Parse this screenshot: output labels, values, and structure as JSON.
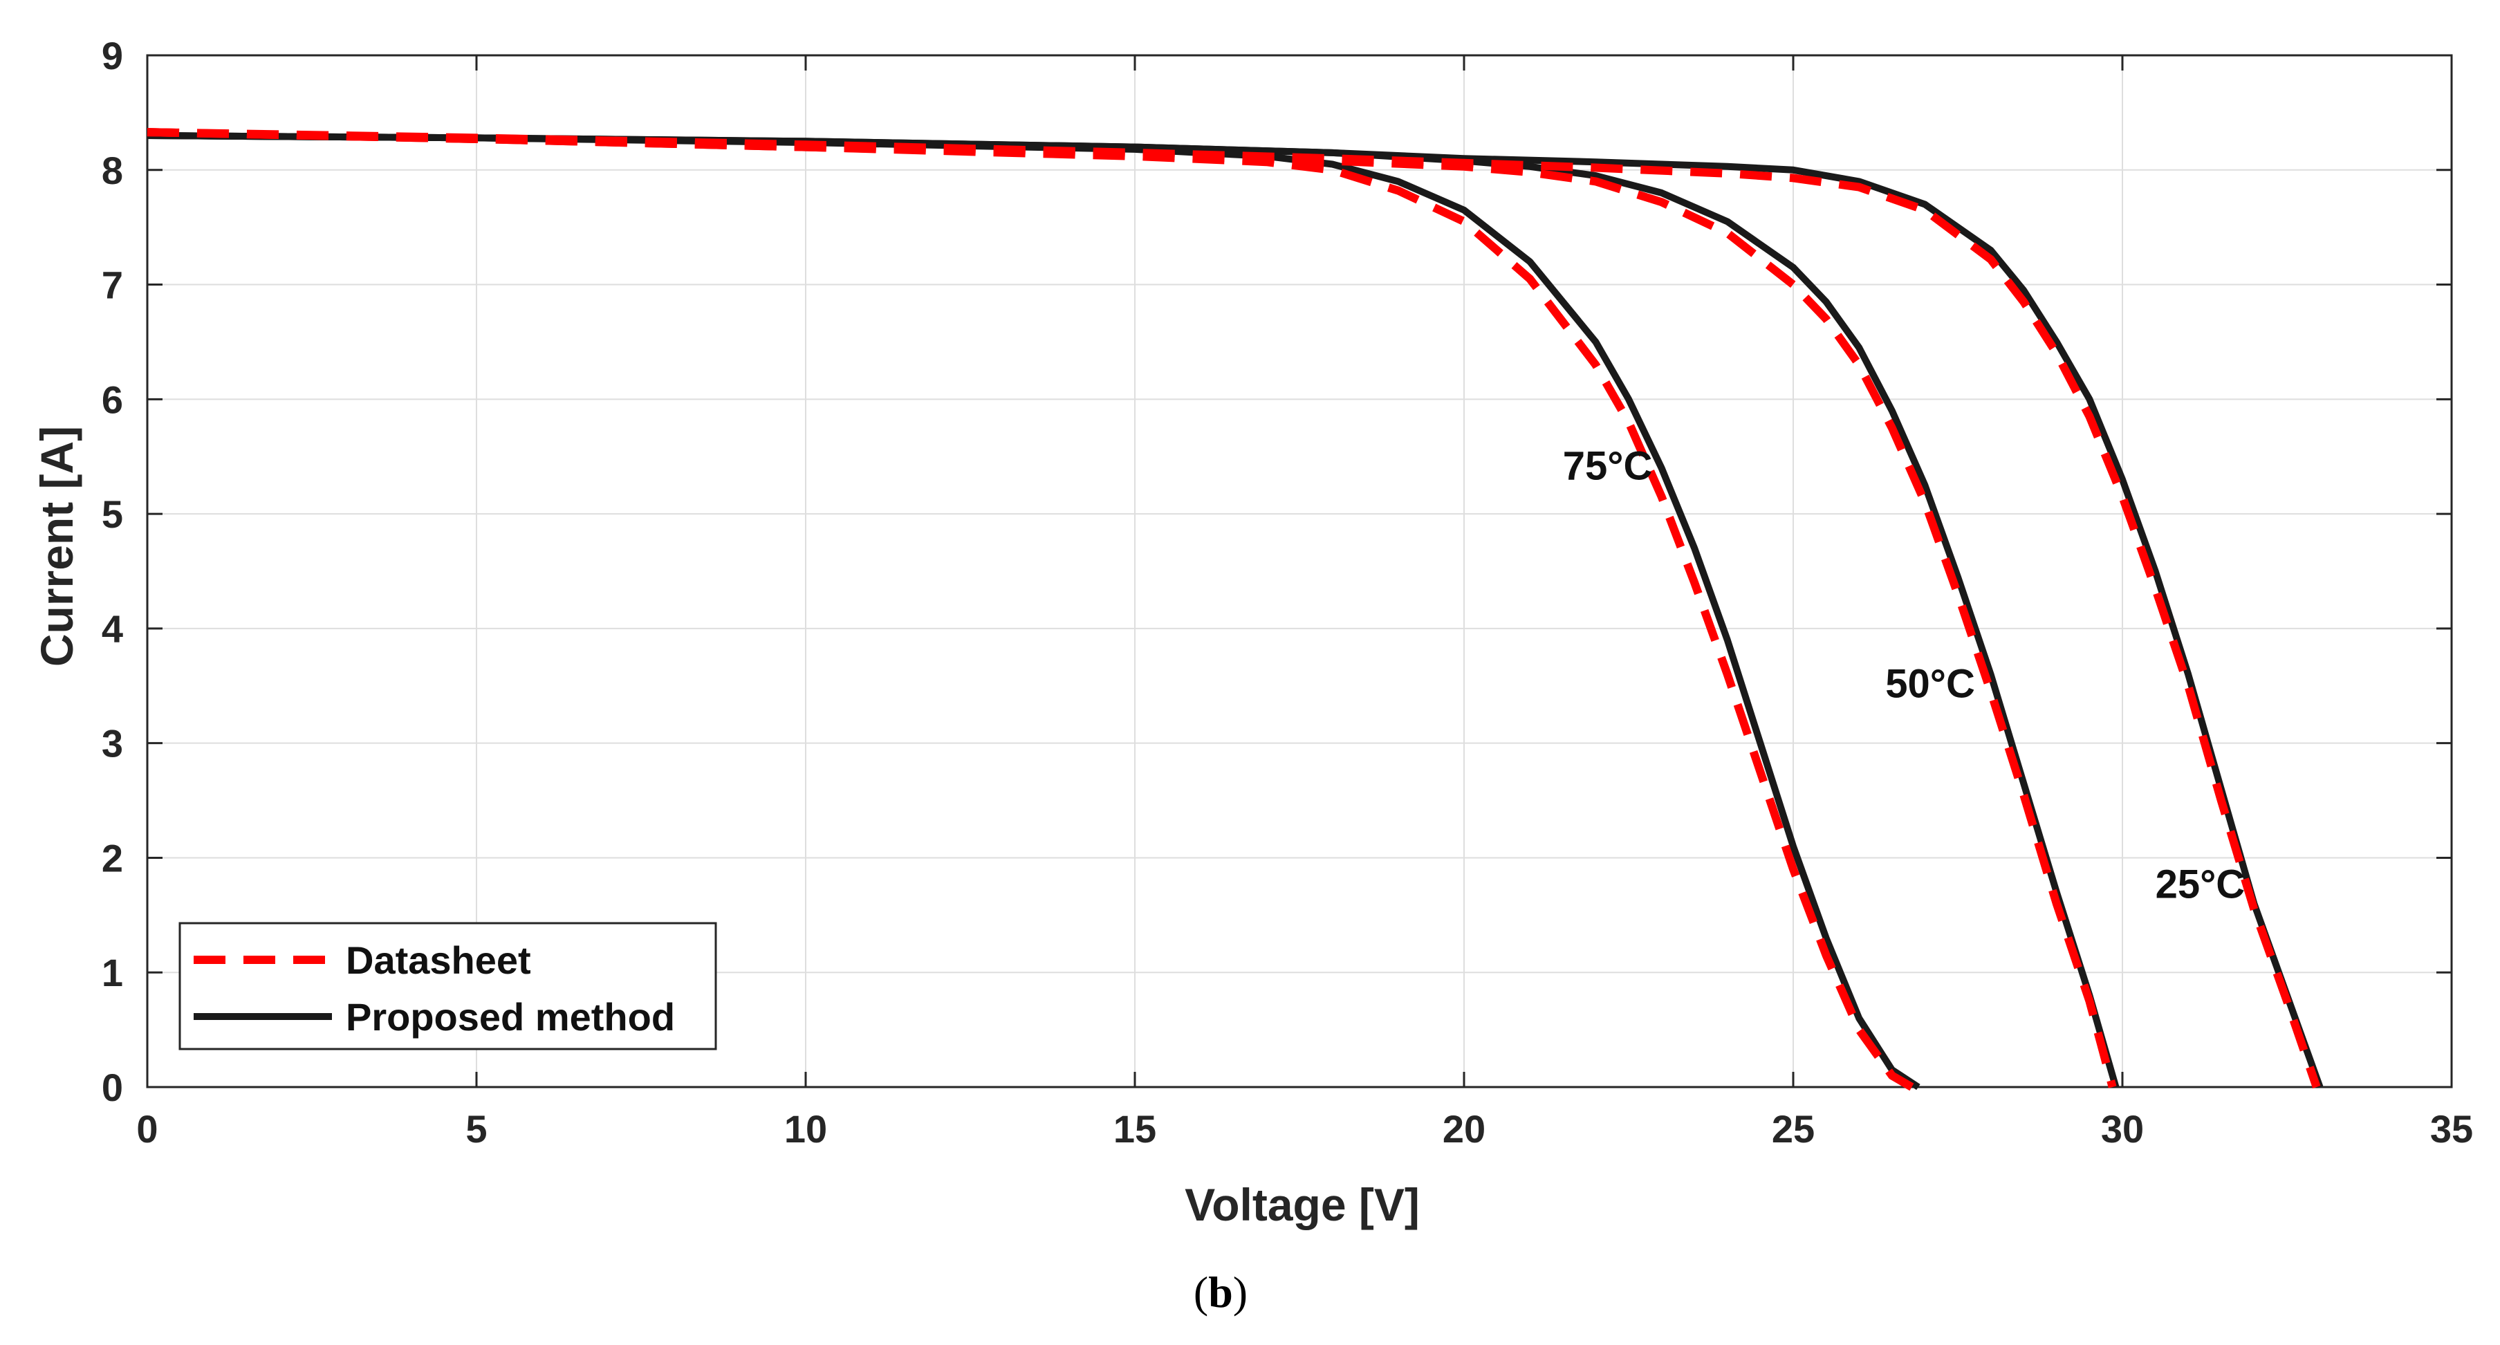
{
  "caption": {
    "open": "(",
    "letter": "b",
    "close": ")"
  },
  "colors": {
    "datasheet": "#ff0000",
    "proposed": "#1a1a1a",
    "grid": "#dedede",
    "axis": "#262626"
  },
  "chart_data": {
    "type": "line",
    "title": "",
    "xlabel": "Voltage [V]",
    "ylabel": "Current [A]",
    "xlim": [
      0,
      35
    ],
    "ylim": [
      0,
      9
    ],
    "xticks": [
      0,
      5,
      10,
      15,
      20,
      25,
      30,
      35
    ],
    "yticks": [
      0,
      1,
      2,
      3,
      4,
      5,
      6,
      7,
      8,
      9
    ],
    "grid": true,
    "legend_position": "bottom-left",
    "legend": [
      {
        "label": "Datasheet",
        "style": "dashed",
        "color": "#ff0000"
      },
      {
        "label": "Proposed method",
        "style": "solid",
        "color": "#1a1a1a"
      }
    ],
    "annotations": [
      {
        "text": "75°C",
        "x": 21.5,
        "y": 5.3
      },
      {
        "text": "50°C",
        "x": 26.4,
        "y": 3.4
      },
      {
        "text": "25°C",
        "x": 30.5,
        "y": 1.65
      }
    ],
    "series": [
      {
        "name": "Proposed method 25°C",
        "style": "solid",
        "temperature": "25°C",
        "x": [
          0,
          5,
          10,
          15,
          18,
          20,
          22,
          24,
          25,
          26,
          27,
          28,
          28.5,
          29,
          29.5,
          30,
          30.5,
          31,
          31.5,
          32,
          32.5,
          33.0
        ],
        "y": [
          8.3,
          8.28,
          8.25,
          8.2,
          8.15,
          8.1,
          8.07,
          8.03,
          8.0,
          7.9,
          7.7,
          7.3,
          6.95,
          6.5,
          6.0,
          5.3,
          4.5,
          3.6,
          2.6,
          1.6,
          0.8,
          0.0
        ]
      },
      {
        "name": "Datasheet 25°C",
        "style": "dashed",
        "temperature": "25°C",
        "x": [
          0,
          5,
          10,
          15,
          18,
          20,
          22,
          24,
          25,
          26,
          27,
          28,
          28.5,
          29,
          29.5,
          30,
          30.5,
          31,
          31.5,
          32,
          32.5,
          32.95
        ],
        "y": [
          8.33,
          8.28,
          8.22,
          8.15,
          8.1,
          8.06,
          8.02,
          7.97,
          7.93,
          7.85,
          7.65,
          7.22,
          6.85,
          6.4,
          5.85,
          5.15,
          4.35,
          3.5,
          2.5,
          1.55,
          0.75,
          0.0
        ]
      },
      {
        "name": "Proposed method 50°C",
        "style": "solid",
        "temperature": "50°C",
        "x": [
          0,
          5,
          10,
          15,
          18,
          20,
          21,
          22,
          23,
          24,
          25,
          25.5,
          26,
          26.5,
          27,
          27.5,
          28,
          28.5,
          29,
          29.5,
          29.9
        ],
        "y": [
          8.3,
          8.28,
          8.25,
          8.2,
          8.15,
          8.08,
          8.03,
          7.95,
          7.8,
          7.55,
          7.15,
          6.85,
          6.45,
          5.9,
          5.25,
          4.45,
          3.6,
          2.65,
          1.7,
          0.8,
          0.0
        ]
      },
      {
        "name": "Datasheet 50°C",
        "style": "dashed",
        "temperature": "50°C",
        "x": [
          0,
          5,
          10,
          15,
          18,
          20,
          21,
          22,
          23,
          24,
          25,
          25.5,
          26,
          26.5,
          27,
          27.5,
          28,
          28.5,
          29,
          29.5,
          29.85
        ],
        "y": [
          8.33,
          8.27,
          8.2,
          8.13,
          8.08,
          8.03,
          7.98,
          7.9,
          7.72,
          7.45,
          7.0,
          6.7,
          6.3,
          5.75,
          5.1,
          4.3,
          3.45,
          2.55,
          1.6,
          0.75,
          0.0
        ]
      },
      {
        "name": "Proposed method 75°C",
        "style": "solid",
        "temperature": "75°C",
        "x": [
          0,
          5,
          10,
          15,
          17,
          18,
          19,
          20,
          21,
          22,
          22.5,
          23,
          23.5,
          24,
          24.5,
          25,
          25.5,
          26,
          26.5,
          26.9
        ],
        "y": [
          8.3,
          8.28,
          8.24,
          8.18,
          8.12,
          8.05,
          7.9,
          7.65,
          7.2,
          6.5,
          6.0,
          5.4,
          4.7,
          3.9,
          3.0,
          2.1,
          1.3,
          0.6,
          0.15,
          0.0
        ]
      },
      {
        "name": "Datasheet 75°C",
        "style": "dashed",
        "temperature": "75°C",
        "x": [
          0,
          5,
          10,
          15,
          17,
          18,
          19,
          20,
          21,
          22,
          22.5,
          23,
          23.5,
          24,
          24.5,
          25,
          25.5,
          26,
          26.5,
          26.8
        ],
        "y": [
          8.33,
          8.27,
          8.2,
          8.12,
          8.07,
          8.0,
          7.82,
          7.55,
          7.05,
          6.3,
          5.8,
          5.15,
          4.4,
          3.6,
          2.75,
          1.9,
          1.15,
          0.5,
          0.1,
          0.0
        ]
      }
    ]
  }
}
